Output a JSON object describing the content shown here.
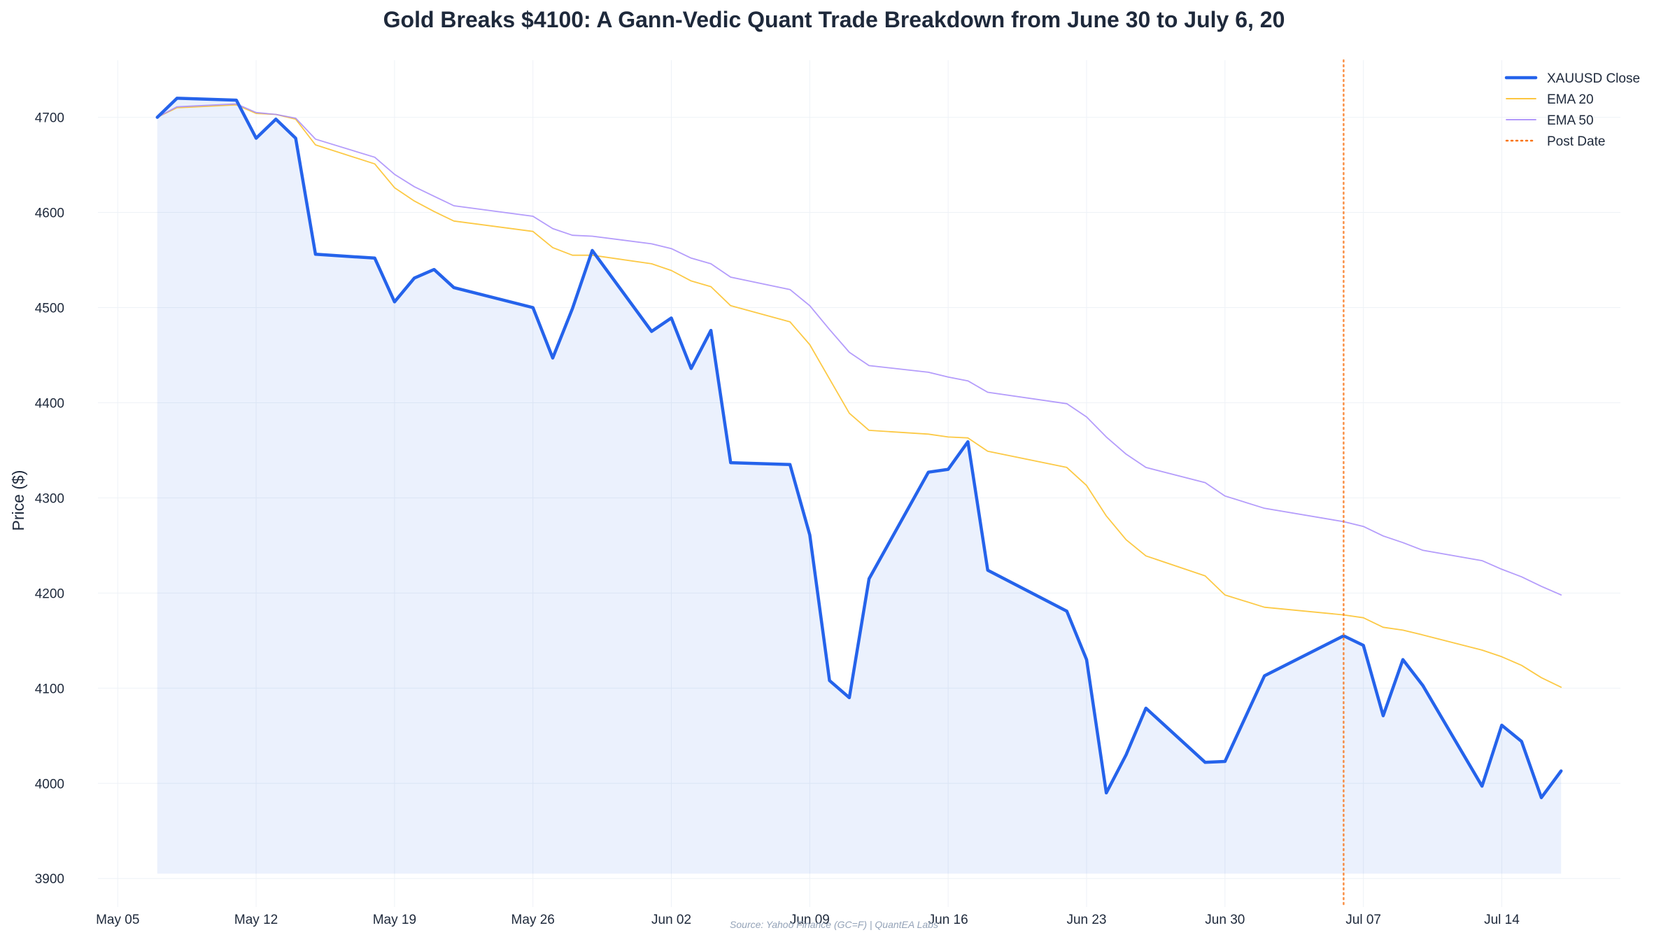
{
  "chart_data": {
    "type": "line",
    "title": "Gold Breaks $4100: A Gann-Vedic Quant Trade Breakdown from June 30 to July 6, 20",
    "xlabel": "",
    "ylabel": "Price ($)",
    "source": "Source: Yahoo Finance (GC=F) | QuantEA Labs",
    "xlim": [
      "2025-05-04",
      "2025-07-20"
    ],
    "ylim": [
      3870,
      4760
    ],
    "x_ticks": [
      {
        "date": "2025-05-05",
        "label": "May 05"
      },
      {
        "date": "2025-05-12",
        "label": "May 12"
      },
      {
        "date": "2025-05-19",
        "label": "May 19"
      },
      {
        "date": "2025-05-26",
        "label": "May 26"
      },
      {
        "date": "2025-06-02",
        "label": "Jun 02"
      },
      {
        "date": "2025-06-09",
        "label": "Jun 09"
      },
      {
        "date": "2025-06-16",
        "label": "Jun 16"
      },
      {
        "date": "2025-06-23",
        "label": "Jun 23"
      },
      {
        "date": "2025-06-30",
        "label": "Jun 30"
      },
      {
        "date": "2025-07-07",
        "label": "Jul 07"
      },
      {
        "date": "2025-07-14",
        "label": "Jul 14"
      }
    ],
    "y_ticks": [
      3900,
      4000,
      4100,
      4200,
      4300,
      4400,
      4500,
      4600,
      4700
    ],
    "grid": true,
    "legend_position": "top-right",
    "x": [
      "2025-05-07",
      "2025-05-08",
      "2025-05-11",
      "2025-05-12",
      "2025-05-13",
      "2025-05-14",
      "2025-05-15",
      "2025-05-18",
      "2025-05-19",
      "2025-05-20",
      "2025-05-21",
      "2025-05-22",
      "2025-05-26",
      "2025-05-27",
      "2025-05-28",
      "2025-05-29",
      "2025-06-01",
      "2025-06-02",
      "2025-06-03",
      "2025-06-04",
      "2025-06-05",
      "2025-06-08",
      "2025-06-09",
      "2025-06-10",
      "2025-06-11",
      "2025-06-12",
      "2025-06-15",
      "2025-06-16",
      "2025-06-17",
      "2025-06-18",
      "2025-06-22",
      "2025-06-23",
      "2025-06-24",
      "2025-06-25",
      "2025-06-26",
      "2025-06-29",
      "2025-06-30",
      "2025-07-02",
      "2025-07-06",
      "2025-07-07",
      "2025-07-08",
      "2025-07-09",
      "2025-07-10",
      "2025-07-13",
      "2025-07-14",
      "2025-07-15",
      "2025-07-16",
      "2025-07-17"
    ],
    "series": [
      {
        "name": "XAUUSD Close",
        "color": "#2563eb",
        "fill": true,
        "values": [
          4700,
          4720,
          4718,
          4678,
          4698,
          4678,
          4556,
          4552,
          4506,
          4531,
          4540,
          4521,
          4500,
          4447,
          4499,
          4560,
          4475,
          4489,
          4436,
          4476,
          4337,
          4335,
          4261,
          4108,
          4090,
          4215,
          4327,
          4330,
          4359,
          4224,
          4181,
          4130,
          3990,
          4030,
          4079,
          4022,
          4023,
          4113,
          4155,
          4145,
          4071,
          4130,
          4103,
          3997,
          4061,
          4044,
          3985,
          4013
        ]
      },
      {
        "name": "EMA 20",
        "color": "#fbbf24",
        "values": [
          4700,
          4710,
          4713,
          4704,
          4703,
          4698,
          4671,
          4651,
          4626,
          4612,
          4601,
          4591,
          4580,
          4563,
          4555,
          4555,
          4546,
          4539,
          4528,
          4522,
          4502,
          4485,
          4461,
          4425,
          4389,
          4371,
          4367,
          4364,
          4363,
          4349,
          4332,
          4313,
          4281,
          4256,
          4239,
          4218,
          4198,
          4185,
          4177,
          4174,
          4164,
          4161,
          4156,
          4140,
          4133,
          4124,
          4111,
          4101
        ]
      },
      {
        "name": "EMA 50",
        "color": "#a78bfa",
        "values": [
          4700,
          4711,
          4714,
          4705,
          4703,
          4699,
          4677,
          4658,
          4640,
          4627,
          4617,
          4607,
          4596,
          4583,
          4576,
          4575,
          4567,
          4562,
          4552,
          4546,
          4532,
          4519,
          4502,
          4477,
          4453,
          4439,
          4432,
          4427,
          4423,
          4411,
          4399,
          4385,
          4364,
          4346,
          4332,
          4316,
          4302,
          4289,
          4275,
          4270,
          4260,
          4253,
          4245,
          4234,
          4225,
          4217,
          4207,
          4198
        ]
      }
    ],
    "vline": {
      "name": "Post Date",
      "date": "2025-07-06",
      "color": "#f97316"
    }
  }
}
